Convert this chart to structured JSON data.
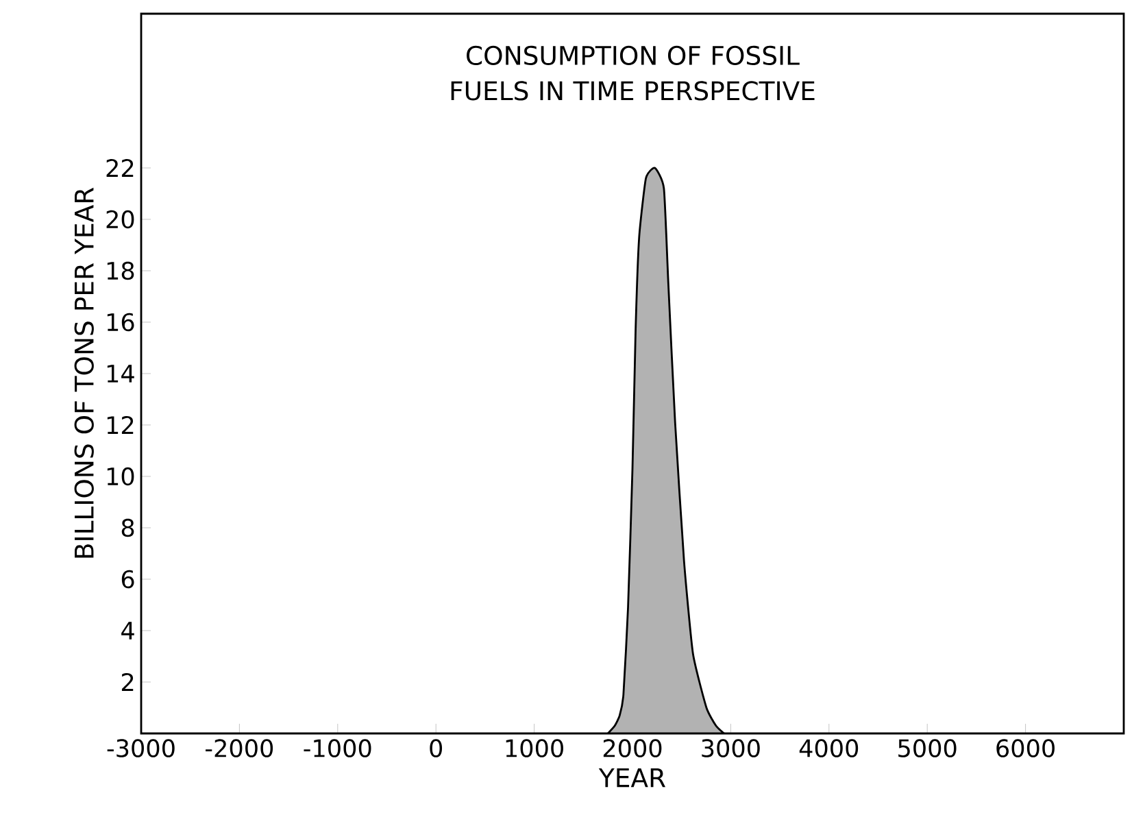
{
  "chart_data": {
    "type": "area",
    "title": "CONSUMPTION OF FOSSIL FUELS IN TIME PERSPECTIVE",
    "xlabel": "YEAR",
    "ylabel": "BILLIONS OF TONS PER YEAR",
    "x": [
      1750,
      1820,
      1870,
      1908,
      1955,
      2000,
      2032,
      2068,
      2137,
      2228,
      2320,
      2365,
      2434,
      2525,
      2616,
      2753,
      2850,
      2932
    ],
    "values": [
      0,
      0.3,
      0.7,
      1.5,
      4.9,
      10.3,
      15.7,
      19.3,
      21.6,
      22,
      21.2,
      17.5,
      12.1,
      6.7,
      3.1,
      1.0,
      0.3,
      0
    ],
    "color": "#000000",
    "xlim": [
      -3000,
      7000
    ],
    "ylim": [
      0,
      28
    ],
    "xticks": [
      -3000,
      -2000,
      -1000,
      0,
      1000,
      2000,
      3000,
      4000,
      5000,
      6000
    ],
    "yticks": [
      2,
      4,
      6,
      8,
      10,
      12,
      14,
      16,
      18,
      20,
      22
    ],
    "grid": false
  }
}
